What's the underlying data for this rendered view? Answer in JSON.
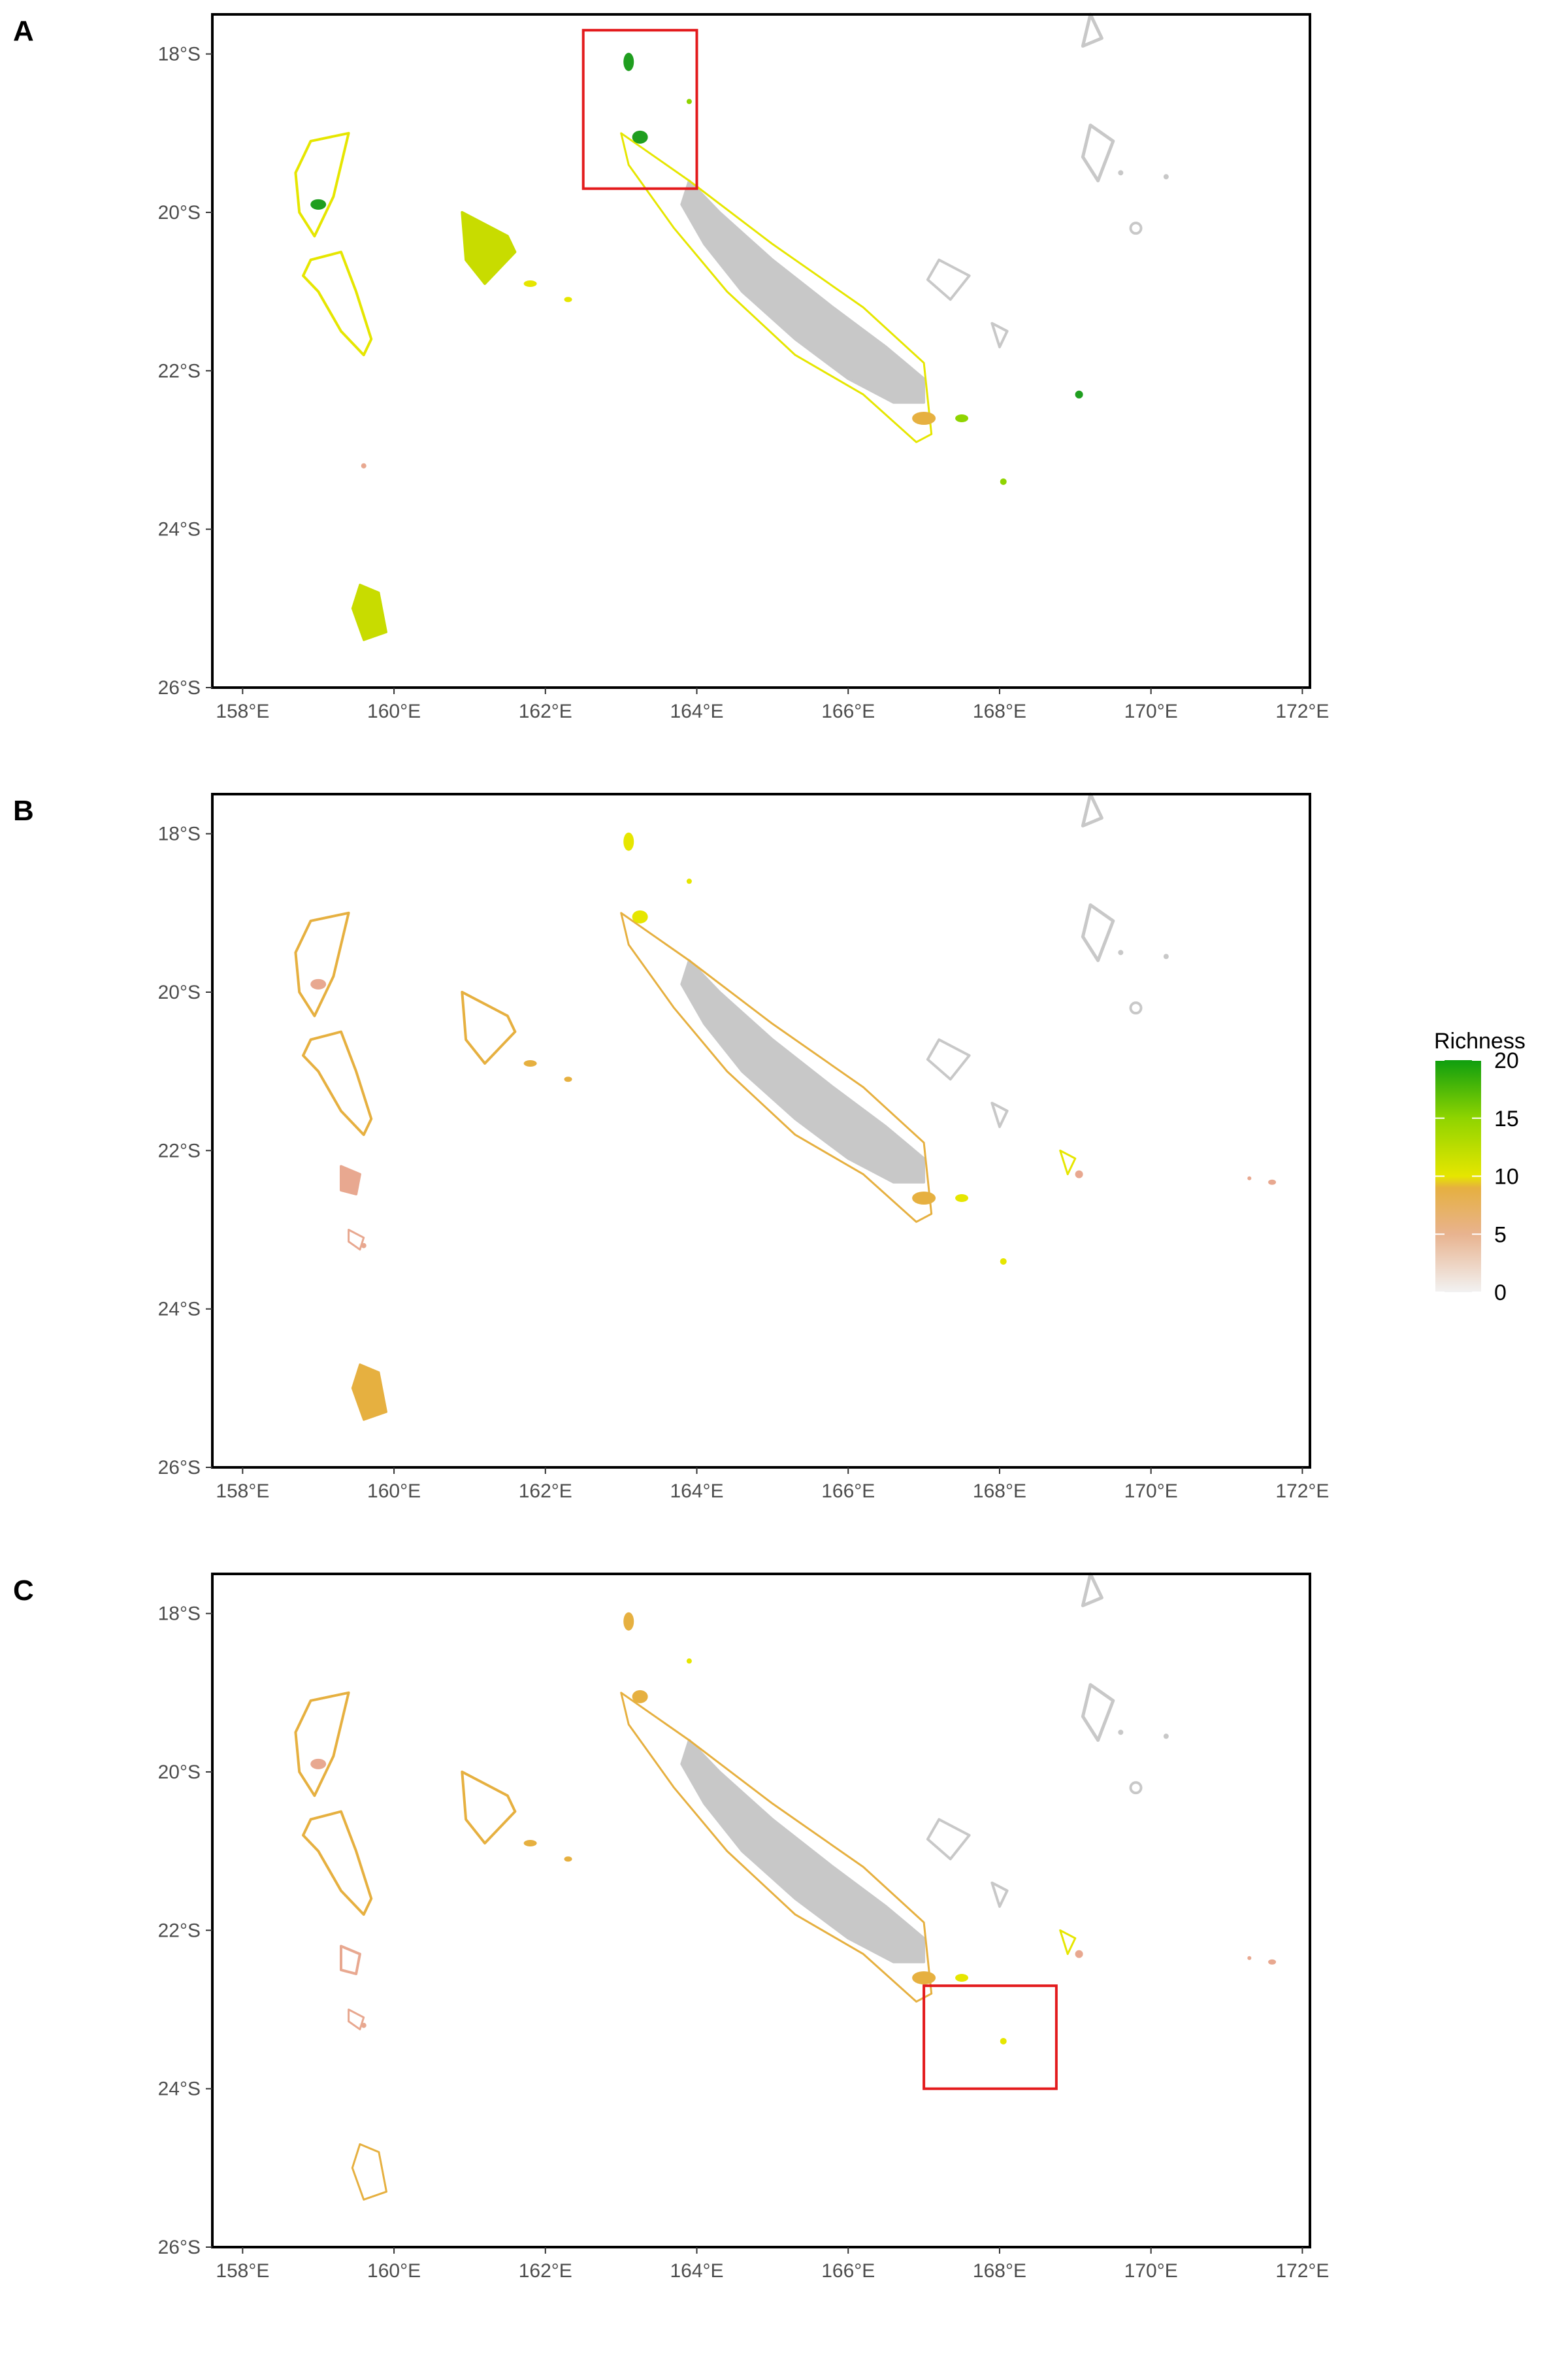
{
  "panels": [
    {
      "label": "A",
      "highlight": {
        "lon": [
          162.5,
          164.0
        ],
        "lat": [
          -17.7,
          -19.7
        ]
      }
    },
    {
      "label": "B"
    },
    {
      "label": "C",
      "highlight": {
        "lon": [
          167.0,
          168.75
        ],
        "lat": [
          -22.7,
          -24.0
        ]
      }
    }
  ],
  "axes": {
    "x_ticks": [
      {
        "value": 158,
        "label": "158°E"
      },
      {
        "value": 160,
        "label": "160°E"
      },
      {
        "value": 162,
        "label": "162°E"
      },
      {
        "value": 164,
        "label": "164°E"
      },
      {
        "value": 166,
        "label": "166°E"
      },
      {
        "value": 168,
        "label": "168°E"
      },
      {
        "value": 170,
        "label": "170°E"
      },
      {
        "value": 172,
        "label": "172°E"
      }
    ],
    "y_ticks": [
      {
        "value": -18,
        "label": "18°S"
      },
      {
        "value": -20,
        "label": "20°S"
      },
      {
        "value": -22,
        "label": "22°S"
      },
      {
        "value": -24,
        "label": "24°S"
      },
      {
        "value": -26,
        "label": "26°S"
      }
    ],
    "lon_range": [
      157.6,
      172.1
    ],
    "lat_range": [
      -26.0,
      -17.5
    ]
  },
  "legend": {
    "title": "Richness",
    "ticks": [
      {
        "value": 20,
        "label": "20"
      },
      {
        "value": 15,
        "label": "15"
      },
      {
        "value": 10,
        "label": "10"
      },
      {
        "value": 5,
        "label": "5"
      },
      {
        "value": 0,
        "label": "0"
      }
    ],
    "range": [
      0,
      20
    ],
    "gradient_colors": [
      "#f2f2f2",
      "#e8b38f",
      "#e6b040",
      "#e6e600",
      "#8fd400",
      "#0f9e0f"
    ]
  },
  "colors": {
    "land": "#c8c8c8",
    "highlight_box": "#e31a1c",
    "frame": "#000000"
  }
}
